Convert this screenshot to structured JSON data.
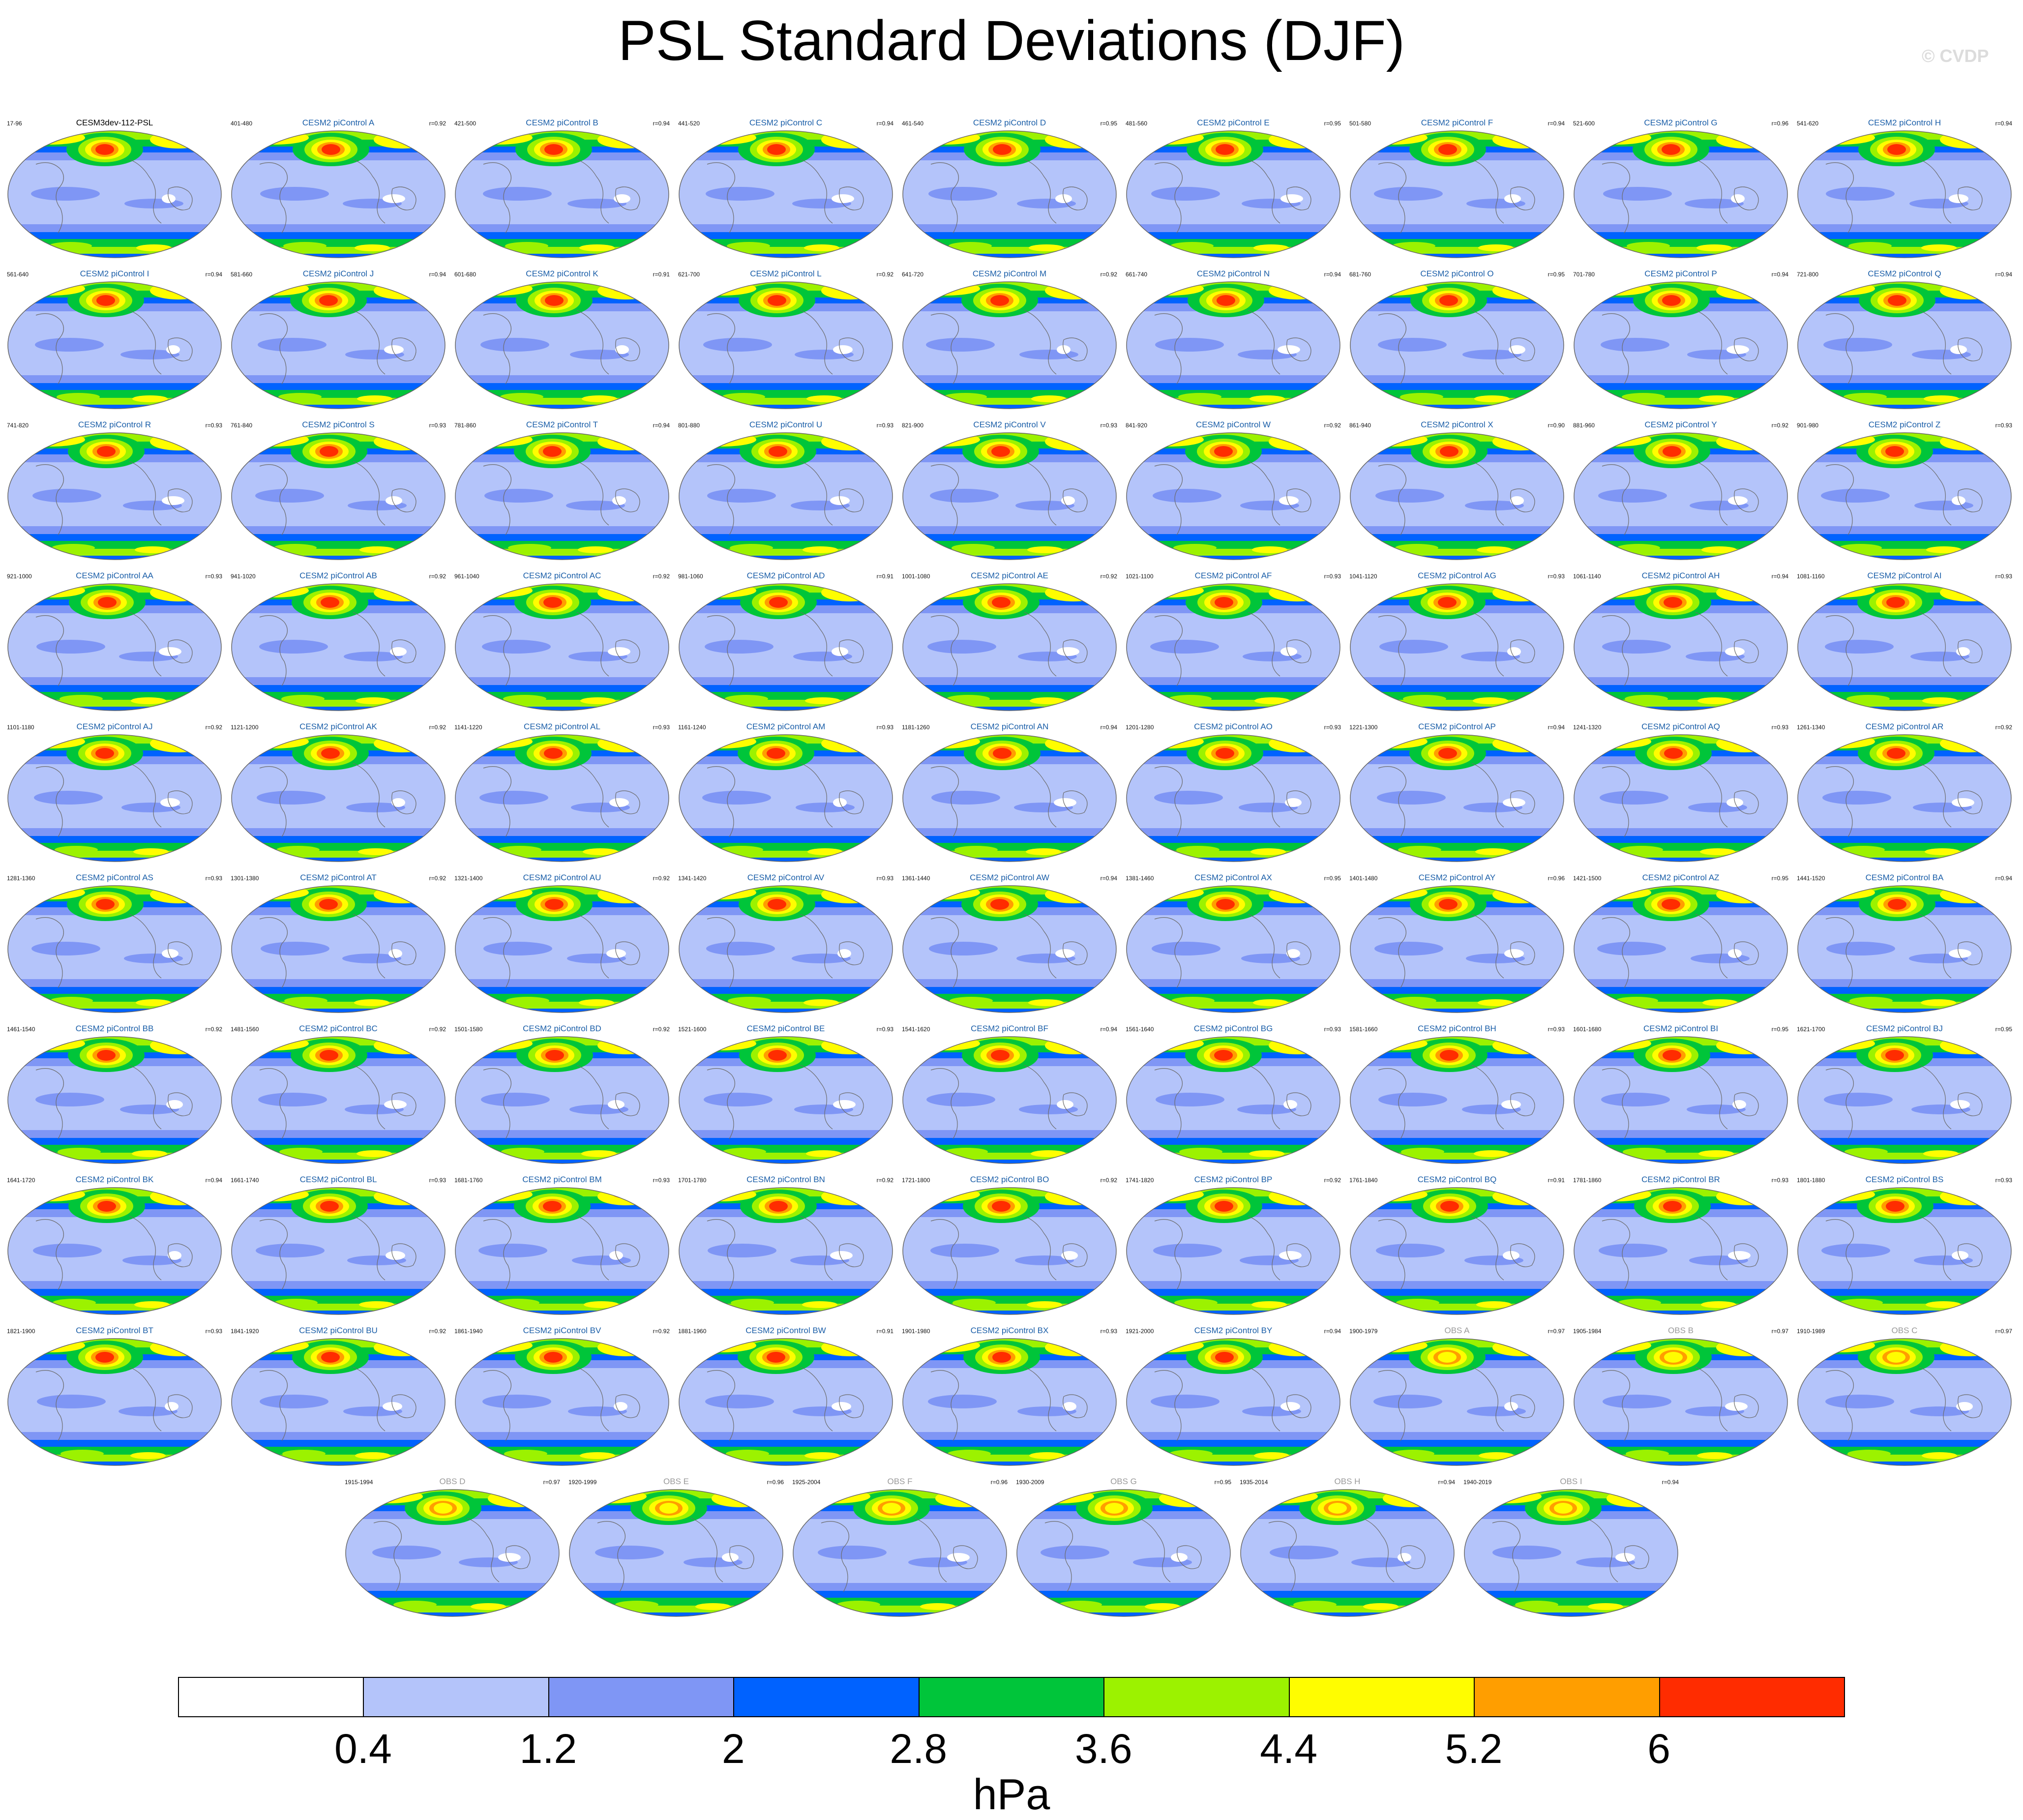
{
  "title": "PSL Standard Deviations (DJF)",
  "watermark": "© CVDP",
  "chart_data": {
    "type": "contour-map-panels",
    "variable": "PSL",
    "season": "DJF",
    "statistic": "Standard Deviation",
    "units": "hPa",
    "projection": "Robinson",
    "colorbar": {
      "levels": [
        0.4,
        1.2,
        2,
        2.8,
        3.6,
        4.4,
        5.2,
        6
      ],
      "level_labels": [
        "0.4",
        "1.2",
        "2",
        "2.8",
        "3.6",
        "4.4",
        "5.2",
        "6"
      ],
      "colors": [
        "#ffffff",
        "#b4c4fa",
        "#7f96f5",
        "#0062ff",
        "#00c53a",
        "#9cf200",
        "#fffd00",
        "#ff9e00",
        "#ff2c00"
      ],
      "units": "hPa"
    },
    "panels": [
      {
        "title": "CESM3dev-112-PSL",
        "years": "17-96",
        "r": "",
        "kind": "ref"
      },
      {
        "title": "CESM2 piControl A",
        "years": "401-480",
        "r": "r=0.92",
        "kind": "model"
      },
      {
        "title": "CESM2 piControl B",
        "years": "421-500",
        "r": "r=0.94",
        "kind": "model"
      },
      {
        "title": "CESM2 piControl C",
        "years": "441-520",
        "r": "r=0.94",
        "kind": "model"
      },
      {
        "title": "CESM2 piControl D",
        "years": "461-540",
        "r": "r=0.95",
        "kind": "model"
      },
      {
        "title": "CESM2 piControl E",
        "years": "481-560",
        "r": "r=0.95",
        "kind": "model"
      },
      {
        "title": "CESM2 piControl F",
        "years": "501-580",
        "r": "r=0.94",
        "kind": "model"
      },
      {
        "title": "CESM2 piControl G",
        "years": "521-600",
        "r": "r=0.96",
        "kind": "model"
      },
      {
        "title": "CESM2 piControl H",
        "years": "541-620",
        "r": "r=0.94",
        "kind": "model"
      },
      {
        "title": "CESM2 piControl I",
        "years": "561-640",
        "r": "r=0.94",
        "kind": "model"
      },
      {
        "title": "CESM2 piControl J",
        "years": "581-660",
        "r": "r=0.94",
        "kind": "model"
      },
      {
        "title": "CESM2 piControl K",
        "years": "601-680",
        "r": "r=0.91",
        "kind": "model"
      },
      {
        "title": "CESM2 piControl L",
        "years": "621-700",
        "r": "r=0.92",
        "kind": "model"
      },
      {
        "title": "CESM2 piControl M",
        "years": "641-720",
        "r": "r=0.92",
        "kind": "model"
      },
      {
        "title": "CESM2 piControl N",
        "years": "661-740",
        "r": "r=0.94",
        "kind": "model"
      },
      {
        "title": "CESM2 piControl O",
        "years": "681-760",
        "r": "r=0.95",
        "kind": "model"
      },
      {
        "title": "CESM2 piControl P",
        "years": "701-780",
        "r": "r=0.94",
        "kind": "model"
      },
      {
        "title": "CESM2 piControl Q",
        "years": "721-800",
        "r": "r=0.94",
        "kind": "model"
      },
      {
        "title": "CESM2 piControl R",
        "years": "741-820",
        "r": "r=0.93",
        "kind": "model"
      },
      {
        "title": "CESM2 piControl S",
        "years": "761-840",
        "r": "r=0.93",
        "kind": "model"
      },
      {
        "title": "CESM2 piControl T",
        "years": "781-860",
        "r": "r=0.94",
        "kind": "model"
      },
      {
        "title": "CESM2 piControl U",
        "years": "801-880",
        "r": "r=0.93",
        "kind": "model"
      },
      {
        "title": "CESM2 piControl V",
        "years": "821-900",
        "r": "r=0.93",
        "kind": "model"
      },
      {
        "title": "CESM2 piControl W",
        "years": "841-920",
        "r": "r=0.92",
        "kind": "model"
      },
      {
        "title": "CESM2 piControl X",
        "years": "861-940",
        "r": "r=0.90",
        "kind": "model"
      },
      {
        "title": "CESM2 piControl Y",
        "years": "881-960",
        "r": "r=0.92",
        "kind": "model"
      },
      {
        "title": "CESM2 piControl Z",
        "years": "901-980",
        "r": "r=0.93",
        "kind": "model"
      },
      {
        "title": "CESM2 piControl AA",
        "years": "921-1000",
        "r": "r=0.93",
        "kind": "model"
      },
      {
        "title": "CESM2 piControl AB",
        "years": "941-1020",
        "r": "r=0.92",
        "kind": "model"
      },
      {
        "title": "CESM2 piControl AC",
        "years": "961-1040",
        "r": "r=0.92",
        "kind": "model"
      },
      {
        "title": "CESM2 piControl AD",
        "years": "981-1060",
        "r": "r=0.91",
        "kind": "model"
      },
      {
        "title": "CESM2 piControl AE",
        "years": "1001-1080",
        "r": "r=0.92",
        "kind": "model"
      },
      {
        "title": "CESM2 piControl AF",
        "years": "1021-1100",
        "r": "r=0.93",
        "kind": "model"
      },
      {
        "title": "CESM2 piControl AG",
        "years": "1041-1120",
        "r": "r=0.93",
        "kind": "model"
      },
      {
        "title": "CESM2 piControl AH",
        "years": "1061-1140",
        "r": "r=0.94",
        "kind": "model"
      },
      {
        "title": "CESM2 piControl AI",
        "years": "1081-1160",
        "r": "r=0.93",
        "kind": "model"
      },
      {
        "title": "CESM2 piControl AJ",
        "years": "1101-1180",
        "r": "r=0.92",
        "kind": "model"
      },
      {
        "title": "CESM2 piControl AK",
        "years": "1121-1200",
        "r": "r=0.92",
        "kind": "model"
      },
      {
        "title": "CESM2 piControl AL",
        "years": "1141-1220",
        "r": "r=0.93",
        "kind": "model"
      },
      {
        "title": "CESM2 piControl AM",
        "years": "1161-1240",
        "r": "r=0.93",
        "kind": "model"
      },
      {
        "title": "CESM2 piControl AN",
        "years": "1181-1260",
        "r": "r=0.94",
        "kind": "model"
      },
      {
        "title": "CESM2 piControl AO",
        "years": "1201-1280",
        "r": "r=0.93",
        "kind": "model"
      },
      {
        "title": "CESM2 piControl AP",
        "years": "1221-1300",
        "r": "r=0.94",
        "kind": "model"
      },
      {
        "title": "CESM2 piControl AQ",
        "years": "1241-1320",
        "r": "r=0.93",
        "kind": "model"
      },
      {
        "title": "CESM2 piControl AR",
        "years": "1261-1340",
        "r": "r=0.92",
        "kind": "model"
      },
      {
        "title": "CESM2 piControl AS",
        "years": "1281-1360",
        "r": "r=0.93",
        "kind": "model"
      },
      {
        "title": "CESM2 piControl AT",
        "years": "1301-1380",
        "r": "r=0.92",
        "kind": "model"
      },
      {
        "title": "CESM2 piControl AU",
        "years": "1321-1400",
        "r": "r=0.92",
        "kind": "model"
      },
      {
        "title": "CESM2 piControl AV",
        "years": "1341-1420",
        "r": "r=0.93",
        "kind": "model"
      },
      {
        "title": "CESM2 piControl AW",
        "years": "1361-1440",
        "r": "r=0.94",
        "kind": "model"
      },
      {
        "title": "CESM2 piControl AX",
        "years": "1381-1460",
        "r": "r=0.95",
        "kind": "model"
      },
      {
        "title": "CESM2 piControl AY",
        "years": "1401-1480",
        "r": "r=0.96",
        "kind": "model"
      },
      {
        "title": "CESM2 piControl AZ",
        "years": "1421-1500",
        "r": "r=0.95",
        "kind": "model"
      },
      {
        "title": "CESM2 piControl BA",
        "years": "1441-1520",
        "r": "r=0.94",
        "kind": "model"
      },
      {
        "title": "CESM2 piControl BB",
        "years": "1461-1540",
        "r": "r=0.92",
        "kind": "model"
      },
      {
        "title": "CESM2 piControl BC",
        "years": "1481-1560",
        "r": "r=0.92",
        "kind": "model"
      },
      {
        "title": "CESM2 piControl BD",
        "years": "1501-1580",
        "r": "r=0.92",
        "kind": "model"
      },
      {
        "title": "CESM2 piControl BE",
        "years": "1521-1600",
        "r": "r=0.93",
        "kind": "model"
      },
      {
        "title": "CESM2 piControl BF",
        "years": "1541-1620",
        "r": "r=0.94",
        "kind": "model"
      },
      {
        "title": "CESM2 piControl BG",
        "years": "1561-1640",
        "r": "r=0.93",
        "kind": "model"
      },
      {
        "title": "CESM2 piControl BH",
        "years": "1581-1660",
        "r": "r=0.93",
        "kind": "model"
      },
      {
        "title": "CESM2 piControl BI",
        "years": "1601-1680",
        "r": "r=0.95",
        "kind": "model"
      },
      {
        "title": "CESM2 piControl BJ",
        "years": "1621-1700",
        "r": "r=0.95",
        "kind": "model"
      },
      {
        "title": "CESM2 piControl BK",
        "years": "1641-1720",
        "r": "r=0.94",
        "kind": "model"
      },
      {
        "title": "CESM2 piControl BL",
        "years": "1661-1740",
        "r": "r=0.93",
        "kind": "model"
      },
      {
        "title": "CESM2 piControl BM",
        "years": "1681-1760",
        "r": "r=0.93",
        "kind": "model"
      },
      {
        "title": "CESM2 piControl BN",
        "years": "1701-1780",
        "r": "r=0.92",
        "kind": "model"
      },
      {
        "title": "CESM2 piControl BO",
        "years": "1721-1800",
        "r": "r=0.92",
        "kind": "model"
      },
      {
        "title": "CESM2 piControl BP",
        "years": "1741-1820",
        "r": "r=0.92",
        "kind": "model"
      },
      {
        "title": "CESM2 piControl BQ",
        "years": "1761-1840",
        "r": "r=0.91",
        "kind": "model"
      },
      {
        "title": "CESM2 piControl BR",
        "years": "1781-1860",
        "r": "r=0.93",
        "kind": "model"
      },
      {
        "title": "CESM2 piControl BS",
        "years": "1801-1880",
        "r": "r=0.93",
        "kind": "model"
      },
      {
        "title": "CESM2 piControl BT",
        "years": "1821-1900",
        "r": "r=0.93",
        "kind": "model"
      },
      {
        "title": "CESM2 piControl BU",
        "years": "1841-1920",
        "r": "r=0.92",
        "kind": "model"
      },
      {
        "title": "CESM2 piControl BV",
        "years": "1861-1940",
        "r": "r=0.92",
        "kind": "model"
      },
      {
        "title": "CESM2 piControl BW",
        "years": "1881-1960",
        "r": "r=0.91",
        "kind": "model"
      },
      {
        "title": "CESM2 piControl BX",
        "years": "1901-1980",
        "r": "r=0.93",
        "kind": "model"
      },
      {
        "title": "CESM2 piControl BY",
        "years": "1921-2000",
        "r": "r=0.94",
        "kind": "model"
      },
      {
        "title": "OBS A",
        "years": "1900-1979",
        "r": "r=0.97",
        "kind": "obs"
      },
      {
        "title": "OBS B",
        "years": "1905-1984",
        "r": "r=0.97",
        "kind": "obs"
      },
      {
        "title": "OBS C",
        "years": "1910-1989",
        "r": "r=0.97",
        "kind": "obs"
      },
      {
        "title": "OBS D",
        "years": "1915-1994",
        "r": "r=0.97",
        "kind": "obs"
      },
      {
        "title": "OBS E",
        "years": "1920-1999",
        "r": "r=0.96",
        "kind": "obs"
      },
      {
        "title": "OBS F",
        "years": "1925-2004",
        "r": "r=0.96",
        "kind": "obs"
      },
      {
        "title": "OBS G",
        "years": "1930-2009",
        "r": "r=0.95",
        "kind": "obs"
      },
      {
        "title": "OBS H",
        "years": "1935-2014",
        "r": "r=0.94",
        "kind": "obs"
      },
      {
        "title": "OBS I",
        "years": "1940-2019",
        "r": "r=0.94",
        "kind": "obs"
      }
    ]
  }
}
